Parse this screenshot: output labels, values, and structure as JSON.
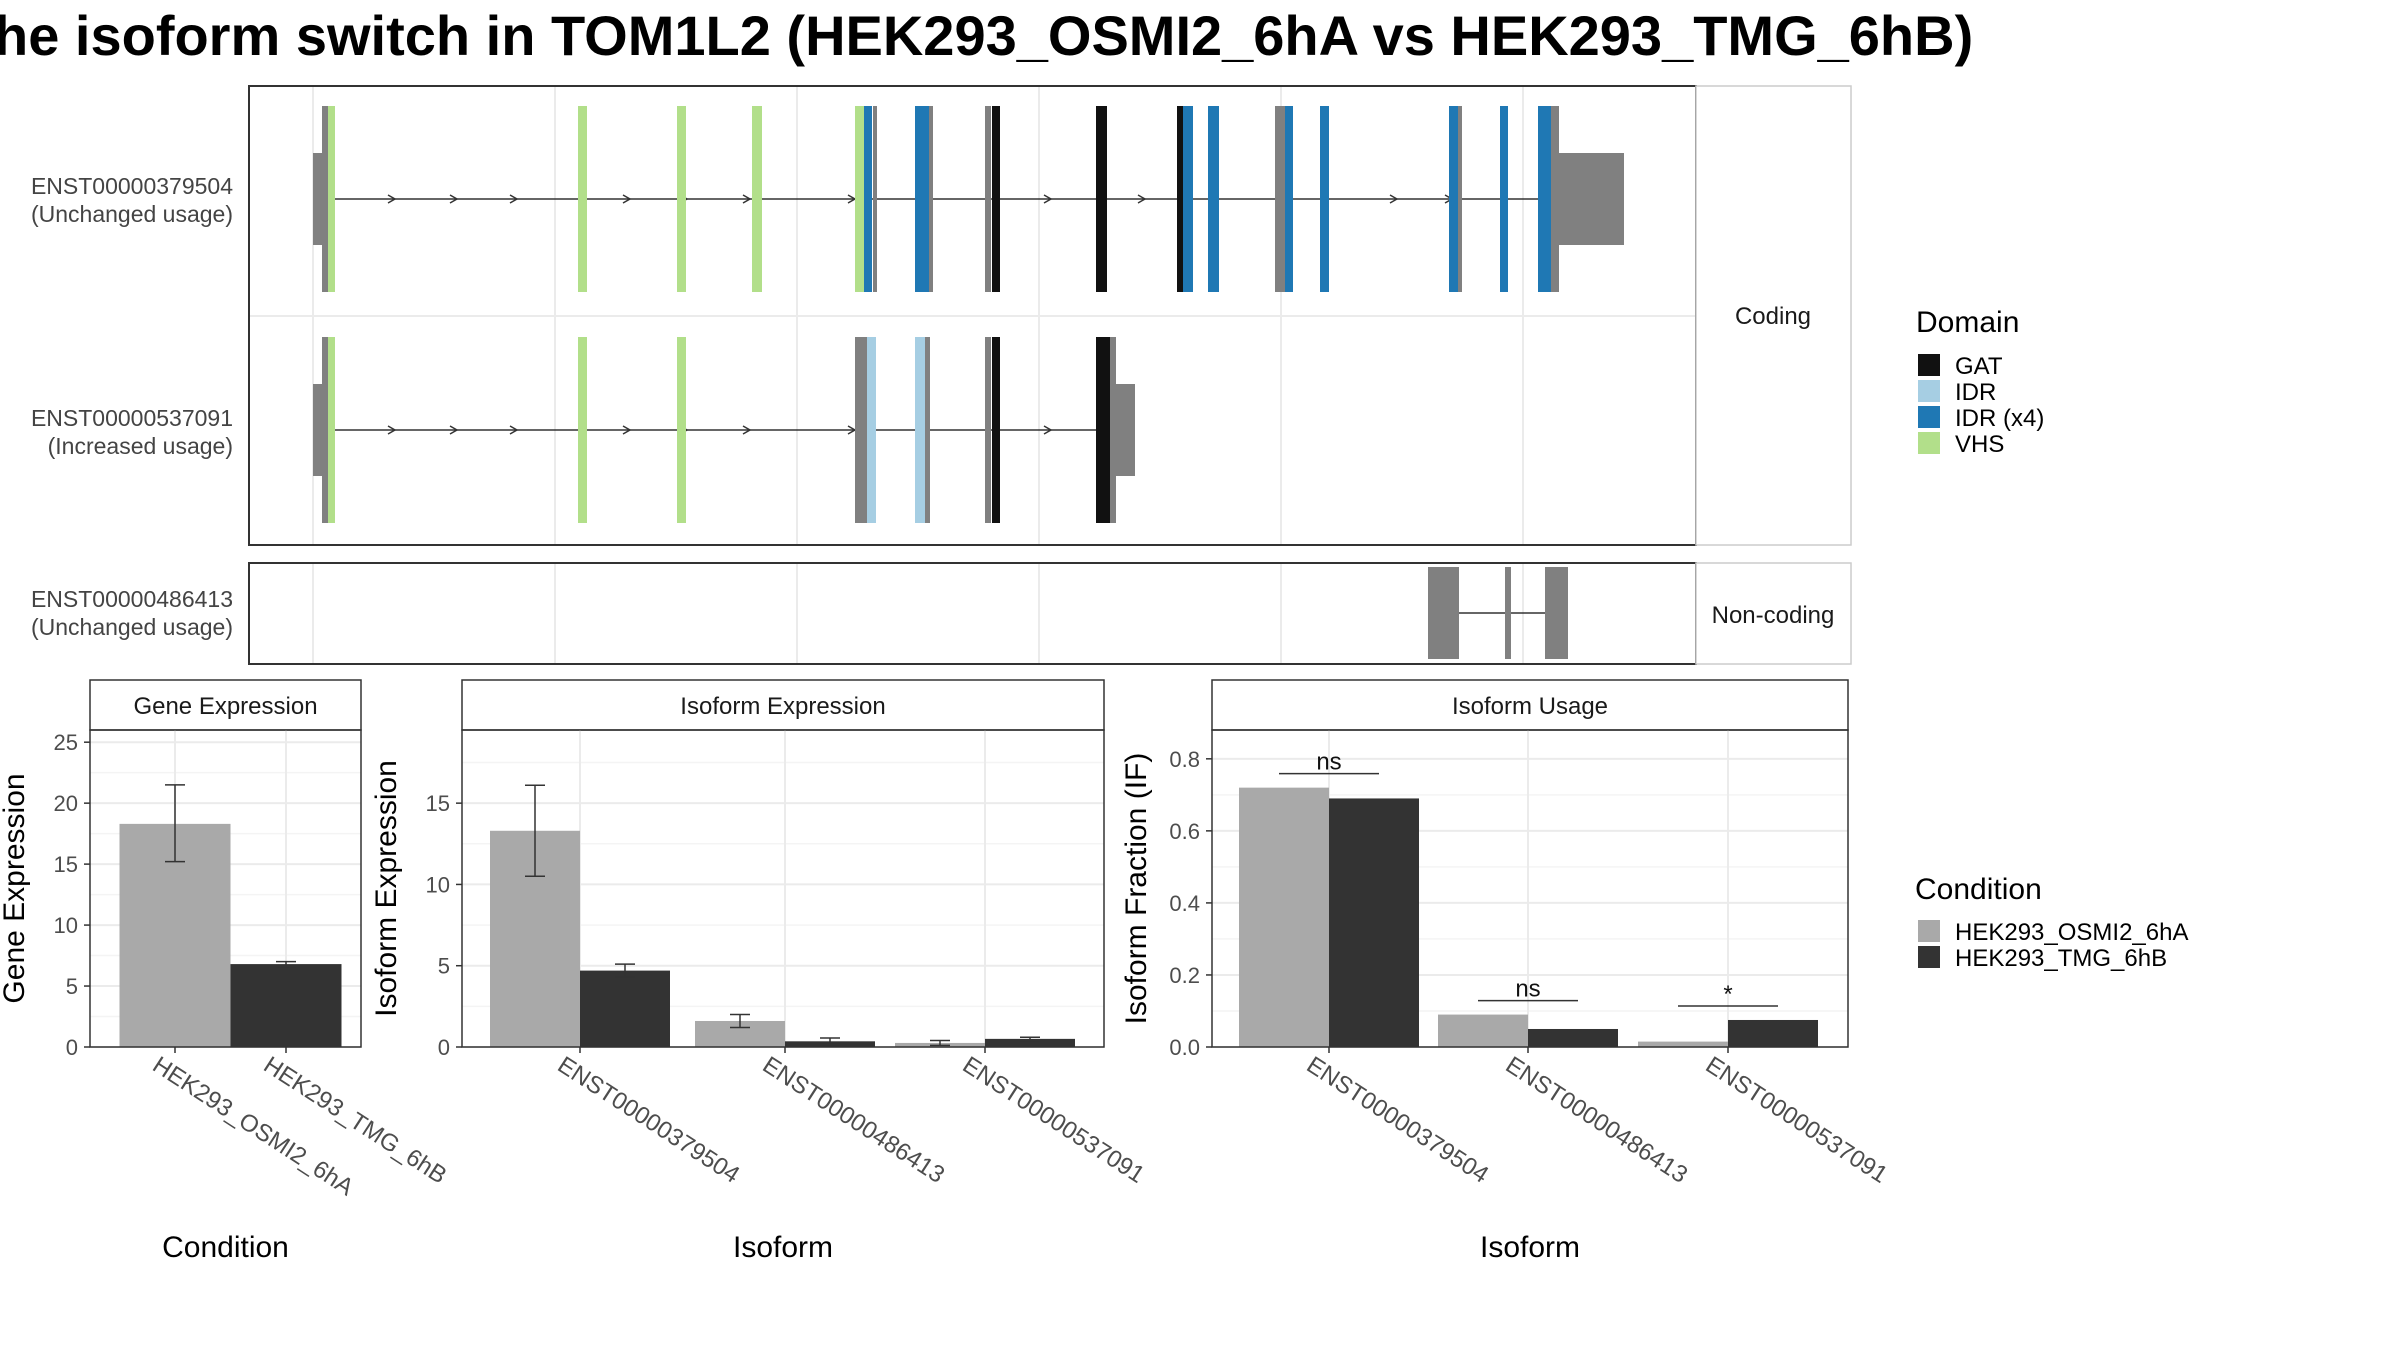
{
  "title": "he isoform switch in TOM1L2 (HEK293_OSMI2_6hA vs HEK293_TMG_6hB)",
  "colors": {
    "GAT": "#111111",
    "IDR": "#a6cee3",
    "IDR (x4)": "#1f78b4",
    "VHS": "#b2df8a",
    "utr": "#808080",
    "cond_a": "#a9a9a9",
    "cond_b": "#333333"
  },
  "legends": {
    "domain": {
      "title": "Domain",
      "items": [
        "GAT",
        "IDR",
        "IDR (x4)",
        "VHS"
      ]
    },
    "condition": {
      "title": "Condition",
      "items": [
        "HEK293_OSMI2_6hA",
        "HEK293_TMG_6hB"
      ]
    }
  },
  "structure": {
    "coding_strip": "Coding",
    "noncoding_strip": "Non-coding",
    "transcripts": [
      {
        "id": "ENST00000379504",
        "usage": "(Unchanged usage)"
      },
      {
        "id": "ENST00000537091",
        "usage": "(Increased usage)"
      },
      {
        "id": "ENST00000486413",
        "usage": "(Unchanged usage)"
      }
    ]
  },
  "chart_data": [
    {
      "type": "bar",
      "title": "Gene Expression",
      "xlabel": "Condition",
      "ylabel": "Gene Expression",
      "categories": [
        "HEK293_OSMI2_6hA",
        "HEK293_TMG_6hB"
      ],
      "values": [
        18.3,
        6.8
      ],
      "error": [
        [
          15.2,
          21.5
        ],
        [
          6.6,
          7.0
        ]
      ],
      "ylim": [
        0,
        26
      ],
      "yticks": [
        0,
        5,
        10,
        15,
        20,
        25
      ]
    },
    {
      "type": "bar",
      "title": "Isoform Expression",
      "xlabel": "Isoform",
      "ylabel": "Isoform Expression",
      "categories": [
        "ENST00000379504",
        "ENST00000486413",
        "ENST00000537091"
      ],
      "series": [
        {
          "name": "HEK293_OSMI2_6hA",
          "values": [
            13.3,
            1.6,
            0.25
          ],
          "error": [
            [
              10.5,
              16.1
            ],
            [
              1.2,
              2.0
            ],
            [
              0.1,
              0.4
            ]
          ]
        },
        {
          "name": "HEK293_TMG_6hB",
          "values": [
            4.7,
            0.35,
            0.5
          ],
          "error": [
            [
              4.3,
              5.1
            ],
            [
              0.15,
              0.55
            ],
            [
              0.4,
              0.6
            ]
          ]
        }
      ],
      "ylim": [
        0,
        19.5
      ],
      "yticks": [
        0,
        5,
        10,
        15
      ]
    },
    {
      "type": "bar",
      "title": "Isoform Usage",
      "xlabel": "Isoform",
      "ylabel": "Isoform Fraction (IF)",
      "categories": [
        "ENST00000379504",
        "ENST00000486413",
        "ENST00000537091"
      ],
      "series": [
        {
          "name": "HEK293_OSMI2_6hA",
          "values": [
            0.72,
            0.09,
            0.015
          ]
        },
        {
          "name": "HEK293_TMG_6hB",
          "values": [
            0.69,
            0.05,
            0.075
          ]
        }
      ],
      "significance": [
        "ns",
        "ns",
        "*"
      ],
      "ylim": [
        0,
        0.88
      ],
      "yticks": [
        0.0,
        0.2,
        0.4,
        0.6,
        0.8
      ],
      "ytick_labels": [
        "0.0",
        "0.2",
        "0.4",
        "0.6",
        "0.8"
      ]
    }
  ]
}
